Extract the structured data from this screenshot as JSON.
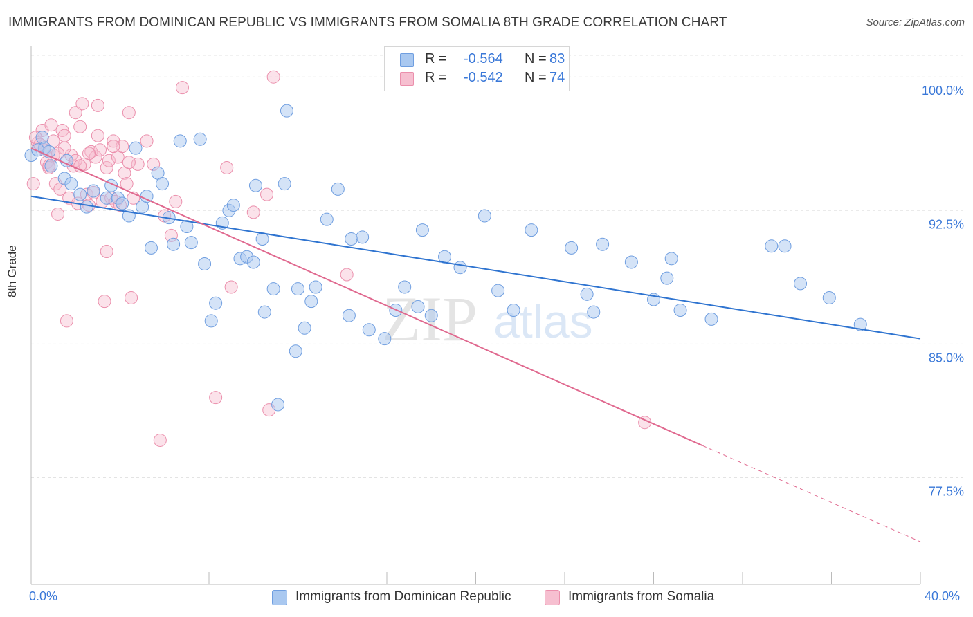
{
  "title": "IMMIGRANTS FROM DOMINICAN REPUBLIC VS IMMIGRANTS FROM SOMALIA 8TH GRADE CORRELATION CHART",
  "source": "Source: ZipAtlas.com",
  "watermark": {
    "zip": "ZIP",
    "atlas": "atlas"
  },
  "legend": {
    "series1": {
      "r_label": "R = ",
      "r_value": "-0.564",
      "n_label": "N = ",
      "n_value": "83"
    },
    "series2": {
      "r_label": "R = ",
      "r_value": "-0.542",
      "n_label": "N = ",
      "n_value": "74"
    }
  },
  "bottom_legend": {
    "series1": "Immigrants from Dominican Republic",
    "series2": "Immigrants from Somalia"
  },
  "x_tick_labels": {
    "min": "0.0%",
    "max": "40.0%"
  },
  "colors": {
    "blue_fill": "#a9c8f0",
    "blue_stroke": "#6f9ee0",
    "blue_line": "#2f74d0",
    "pink_fill": "#f6bfd0",
    "pink_stroke": "#eb8fac",
    "pink_line": "#e0698f",
    "tick_text": "#3a78d8",
    "grid": "#e3e3e3"
  },
  "chart_data": {
    "type": "scatter",
    "title": "IMMIGRANTS FROM DOMINICAN REPUBLIC VS IMMIGRANTS FROM SOMALIA 8TH GRADE CORRELATION CHART",
    "xlabel": "",
    "ylabel": "8th Grade",
    "xlim": [
      0,
      40
    ],
    "ylim": [
      71.5,
      101.6
    ],
    "x_unit": "%",
    "y_unit": "%",
    "y_ticks": [
      77.5,
      85.0,
      92.5,
      100.0
    ],
    "y_tick_labels": [
      "77.5%",
      "85.0%",
      "92.5%",
      "100.0%"
    ],
    "grid": true,
    "legend_position": "top-center",
    "series": [
      {
        "name": "Immigrants from Dominican Republic",
        "color": "#a9c8f0",
        "r": -0.564,
        "n": 83,
        "trend": {
          "x": [
            0,
            40
          ],
          "y": [
            93.3,
            85.3
          ]
        },
        "points": [
          [
            0.0,
            95.6
          ],
          [
            0.5,
            96.6
          ],
          [
            0.6,
            96.0
          ],
          [
            0.8,
            95.8
          ],
          [
            0.9,
            95.0
          ],
          [
            1.5,
            94.3
          ],
          [
            1.6,
            95.3
          ],
          [
            1.8,
            94.0
          ],
          [
            2.2,
            93.4
          ],
          [
            2.5,
            92.7
          ],
          [
            2.8,
            93.6
          ],
          [
            3.4,
            93.2
          ],
          [
            3.6,
            93.9
          ],
          [
            3.9,
            93.2
          ],
          [
            4.1,
            92.9
          ],
          [
            4.4,
            92.2
          ],
          [
            4.7,
            96.0
          ],
          [
            5.0,
            92.7
          ],
          [
            5.2,
            93.3
          ],
          [
            5.4,
            90.4
          ],
          [
            5.7,
            94.6
          ],
          [
            5.9,
            94.0
          ],
          [
            6.2,
            92.1
          ],
          [
            6.4,
            90.6
          ],
          [
            6.7,
            96.4
          ],
          [
            7.0,
            91.6
          ],
          [
            7.2,
            90.7
          ],
          [
            7.6,
            96.5
          ],
          [
            7.8,
            89.5
          ],
          [
            8.1,
            86.3
          ],
          [
            8.3,
            87.3
          ],
          [
            8.6,
            91.8
          ],
          [
            8.9,
            92.5
          ],
          [
            9.1,
            92.8
          ],
          [
            9.4,
            89.8
          ],
          [
            9.7,
            89.9
          ],
          [
            10.0,
            89.6
          ],
          [
            10.1,
            93.9
          ],
          [
            10.4,
            90.9
          ],
          [
            10.5,
            86.8
          ],
          [
            10.9,
            88.1
          ],
          [
            11.1,
            81.6
          ],
          [
            11.4,
            94.0
          ],
          [
            11.5,
            98.1
          ],
          [
            11.9,
            84.6
          ],
          [
            12.0,
            88.1
          ],
          [
            12.3,
            85.9
          ],
          [
            12.6,
            87.4
          ],
          [
            12.8,
            88.2
          ],
          [
            13.3,
            92.0
          ],
          [
            13.8,
            93.7
          ],
          [
            14.3,
            86.6
          ],
          [
            14.4,
            90.9
          ],
          [
            14.9,
            91.0
          ],
          [
            15.2,
            85.8
          ],
          [
            15.9,
            85.3
          ],
          [
            16.4,
            86.9
          ],
          [
            16.8,
            88.2
          ],
          [
            17.4,
            87.1
          ],
          [
            17.6,
            91.4
          ],
          [
            18.0,
            86.6
          ],
          [
            18.6,
            89.9
          ],
          [
            19.3,
            89.3
          ],
          [
            20.4,
            92.2
          ],
          [
            21.0,
            88.0
          ],
          [
            21.7,
            86.9
          ],
          [
            22.5,
            91.4
          ],
          [
            24.3,
            90.4
          ],
          [
            25.0,
            87.8
          ],
          [
            25.3,
            86.8
          ],
          [
            25.7,
            90.6
          ],
          [
            27.0,
            89.6
          ],
          [
            28.0,
            87.5
          ],
          [
            28.6,
            88.7
          ],
          [
            28.8,
            89.8
          ],
          [
            29.2,
            86.9
          ],
          [
            30.6,
            86.4
          ],
          [
            33.3,
            90.5
          ],
          [
            33.9,
            90.5
          ],
          [
            34.6,
            88.4
          ],
          [
            35.9,
            87.6
          ],
          [
            37.3,
            86.1
          ],
          [
            0.3,
            95.9
          ]
        ]
      },
      {
        "name": "Immigrants from Somalia",
        "color": "#f6bfd0",
        "r": -0.542,
        "n": 74,
        "trend": {
          "x": [
            0,
            30.2
          ],
          "y": [
            96.0,
            79.3
          ]
        },
        "trend_dashed": {
          "x": [
            30.2,
            40
          ],
          "y": [
            79.3,
            73.9
          ]
        },
        "points": [
          [
            0.1,
            94.0
          ],
          [
            0.3,
            96.3
          ],
          [
            0.5,
            97.0
          ],
          [
            0.6,
            95.9
          ],
          [
            0.7,
            95.2
          ],
          [
            0.8,
            94.9
          ],
          [
            0.9,
            97.3
          ],
          [
            1.0,
            95.6
          ],
          [
            1.1,
            94.0
          ],
          [
            1.2,
            92.3
          ],
          [
            1.3,
            93.7
          ],
          [
            1.4,
            97.0
          ],
          [
            1.5,
            96.7
          ],
          [
            1.6,
            86.3
          ],
          [
            1.7,
            93.2
          ],
          [
            1.8,
            95.6
          ],
          [
            1.9,
            95.0
          ],
          [
            2.0,
            98.0
          ],
          [
            2.1,
            92.9
          ],
          [
            2.2,
            97.2
          ],
          [
            2.3,
            98.5
          ],
          [
            2.4,
            95.1
          ],
          [
            2.5,
            93.4
          ],
          [
            2.6,
            92.8
          ],
          [
            2.7,
            95.8
          ],
          [
            2.8,
            93.5
          ],
          [
            2.9,
            95.5
          ],
          [
            3.0,
            98.4
          ],
          [
            3.1,
            95.9
          ],
          [
            3.2,
            93.0
          ],
          [
            3.3,
            87.4
          ],
          [
            3.4,
            94.9
          ],
          [
            3.5,
            95.3
          ],
          [
            3.6,
            93.2
          ],
          [
            3.7,
            96.4
          ],
          [
            3.8,
            93.0
          ],
          [
            3.9,
            95.5
          ],
          [
            4.0,
            92.8
          ],
          [
            4.1,
            96.1
          ],
          [
            4.2,
            94.6
          ],
          [
            4.3,
            94.0
          ],
          [
            4.4,
            98.0
          ],
          [
            4.5,
            87.6
          ],
          [
            4.6,
            93.2
          ],
          [
            4.8,
            95.1
          ],
          [
            5.2,
            96.4
          ],
          [
            5.5,
            95.1
          ],
          [
            5.8,
            79.6
          ],
          [
            6.0,
            92.2
          ],
          [
            6.3,
            91.1
          ],
          [
            6.5,
            93.0
          ],
          [
            6.8,
            99.4
          ],
          [
            8.3,
            82.0
          ],
          [
            8.8,
            94.9
          ],
          [
            9.0,
            88.2
          ],
          [
            10.0,
            92.4
          ],
          [
            10.6,
            93.4
          ],
          [
            10.7,
            81.3
          ],
          [
            10.9,
            100.0
          ],
          [
            14.2,
            88.9
          ],
          [
            27.6,
            80.6
          ],
          [
            0.2,
            96.6
          ],
          [
            0.4,
            96.2
          ],
          [
            1.0,
            96.4
          ],
          [
            1.5,
            96.0
          ],
          [
            2.0,
            95.3
          ],
          [
            2.6,
            95.7
          ],
          [
            3.0,
            96.7
          ],
          [
            3.7,
            96.1
          ],
          [
            4.4,
            95.2
          ],
          [
            1.2,
            95.7
          ],
          [
            0.8,
            95.0
          ],
          [
            3.4,
            90.2
          ],
          [
            2.2,
            95.0
          ]
        ]
      }
    ]
  }
}
